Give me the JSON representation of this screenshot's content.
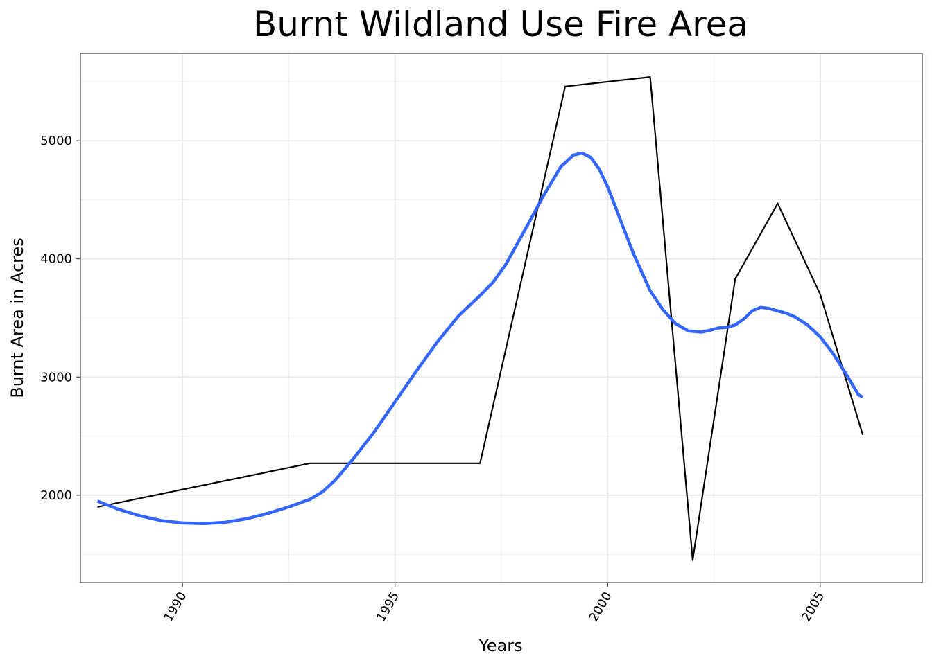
{
  "chart_data": {
    "type": "line",
    "title": "Burnt Wildland Use Fire Area",
    "xlabel": "Years",
    "ylabel": "Burnt Area in Acres",
    "xlim": [
      1987.6,
      2007.4
    ],
    "ylim": [
      1260,
      5740
    ],
    "x_ticks": [
      1990,
      1995,
      2000,
      2005
    ],
    "x_tick_labels": [
      "1990",
      "1995",
      "2000",
      "2005"
    ],
    "x_minor_ticks": [
      1987.5,
      1992.5,
      1997.5,
      2002.5,
      2007.5
    ],
    "y_ticks": [
      2000,
      3000,
      4000,
      5000
    ],
    "y_tick_labels": [
      "2000",
      "3000",
      "4000",
      "5000"
    ],
    "y_minor_ticks": [
      1500,
      2500,
      3500,
      4500,
      5500
    ],
    "grid": true,
    "theme": "bw",
    "series": [
      {
        "kind": "observed",
        "color": "#000000",
        "x": [
          1988,
          1993,
          1997,
          1999,
          2001,
          2002,
          2003,
          2004,
          2005,
          2006
        ],
        "y": [
          1900,
          2270,
          2270,
          5460,
          5540,
          1450,
          3830,
          4470,
          3700,
          2510
        ]
      },
      {
        "kind": "smoothed",
        "color": "#3366FF",
        "x": [
          1988,
          1988.5,
          1989,
          1989.5,
          1990,
          1990.5,
          1991,
          1991.5,
          1992,
          1992.5,
          1993,
          1993.3,
          1993.6,
          1994,
          1994.5,
          1995,
          1995.5,
          1996,
          1996.5,
          1997,
          1997.3,
          1997.6,
          1998,
          1998.5,
          1998.9,
          1999.2,
          1999.4,
          1999.6,
          1999.8,
          2000,
          2000.3,
          2000.6,
          2001,
          2001.3,
          2001.6,
          2001.9,
          2002.2,
          2002.4,
          2002.6,
          2002.8,
          2003,
          2003.2,
          2003.4,
          2003.6,
          2003.8,
          2004,
          2004.2,
          2004.4,
          2004.7,
          2005,
          2005.3,
          2005.6,
          2005.9,
          2006
        ],
        "y": [
          1950,
          1880,
          1825,
          1785,
          1765,
          1760,
          1770,
          1800,
          1845,
          1900,
          1965,
          2030,
          2130,
          2300,
          2530,
          2790,
          3050,
          3300,
          3520,
          3690,
          3800,
          3950,
          4210,
          4540,
          4780,
          4880,
          4895,
          4860,
          4760,
          4610,
          4330,
          4050,
          3730,
          3570,
          3450,
          3390,
          3380,
          3395,
          3415,
          3420,
          3440,
          3490,
          3560,
          3590,
          3580,
          3560,
          3540,
          3510,
          3440,
          3340,
          3200,
          3030,
          2850,
          2830
        ]
      }
    ]
  }
}
